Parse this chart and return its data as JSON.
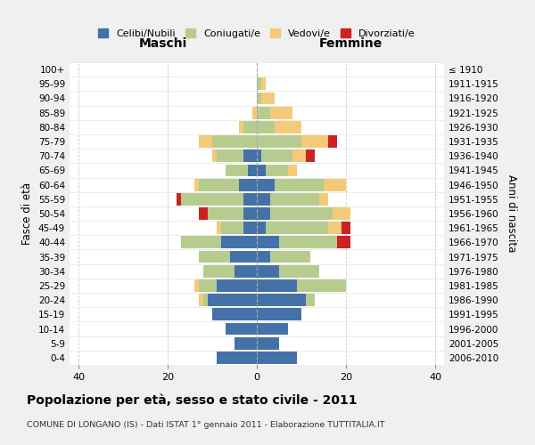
{
  "age_groups": [
    "0-4",
    "5-9",
    "10-14",
    "15-19",
    "20-24",
    "25-29",
    "30-34",
    "35-39",
    "40-44",
    "45-49",
    "50-54",
    "55-59",
    "60-64",
    "65-69",
    "70-74",
    "75-79",
    "80-84",
    "85-89",
    "90-94",
    "95-99",
    "100+"
  ],
  "birth_years": [
    "2006-2010",
    "2001-2005",
    "1996-2000",
    "1991-1995",
    "1986-1990",
    "1981-1985",
    "1976-1980",
    "1971-1975",
    "1966-1970",
    "1961-1965",
    "1956-1960",
    "1951-1955",
    "1946-1950",
    "1941-1945",
    "1936-1940",
    "1931-1935",
    "1926-1930",
    "1921-1925",
    "1916-1920",
    "1911-1915",
    "≤ 1910"
  ],
  "maschi": {
    "celibi": [
      9,
      5,
      7,
      10,
      11,
      9,
      5,
      6,
      8,
      3,
      3,
      3,
      4,
      2,
      3,
      0,
      0,
      0,
      0,
      0,
      0
    ],
    "coniugati": [
      0,
      0,
      0,
      0,
      1,
      4,
      7,
      7,
      9,
      5,
      8,
      14,
      9,
      5,
      6,
      10,
      3,
      0,
      0,
      0,
      0
    ],
    "vedovi": [
      0,
      0,
      0,
      0,
      1,
      1,
      0,
      0,
      0,
      1,
      0,
      0,
      1,
      0,
      1,
      3,
      1,
      1,
      0,
      0,
      0
    ],
    "divorziati": [
      0,
      0,
      0,
      0,
      0,
      0,
      0,
      0,
      0,
      0,
      2,
      1,
      0,
      0,
      0,
      0,
      0,
      0,
      0,
      0,
      0
    ]
  },
  "femmine": {
    "nubili": [
      9,
      5,
      7,
      10,
      11,
      9,
      5,
      3,
      5,
      2,
      3,
      3,
      4,
      2,
      1,
      0,
      0,
      0,
      0,
      0,
      0
    ],
    "coniugate": [
      0,
      0,
      0,
      0,
      2,
      11,
      9,
      9,
      13,
      14,
      14,
      11,
      11,
      5,
      7,
      10,
      4,
      3,
      1,
      1,
      0
    ],
    "vedove": [
      0,
      0,
      0,
      0,
      0,
      0,
      0,
      0,
      0,
      3,
      4,
      2,
      5,
      2,
      3,
      6,
      6,
      5,
      3,
      1,
      0
    ],
    "divorziate": [
      0,
      0,
      0,
      0,
      0,
      0,
      0,
      0,
      3,
      2,
      0,
      0,
      0,
      0,
      2,
      2,
      0,
      0,
      0,
      0,
      0
    ]
  },
  "colors": {
    "celibi_nubili": "#4472a8",
    "coniugati": "#b5cc8e",
    "vedovi": "#f5c97a",
    "divorziati": "#cc2222"
  },
  "xlim": 42,
  "title": "Popolazione per età, sesso e stato civile - 2011",
  "subtitle": "COMUNE DI LONGANO (IS) - Dati ISTAT 1° gennaio 2011 - Elaborazione TUTTITALIA.IT",
  "ylabel_left": "Fasce di età",
  "ylabel_right": "Anni di nascita",
  "xlabel_maschi": "Maschi",
  "xlabel_femmine": "Femmine",
  "legend_labels": [
    "Celibi/Nubili",
    "Coniugati/e",
    "Vedovi/e",
    "Divorziati/e"
  ],
  "bg_color": "#f0f0f0",
  "plot_bg": "#ffffff"
}
